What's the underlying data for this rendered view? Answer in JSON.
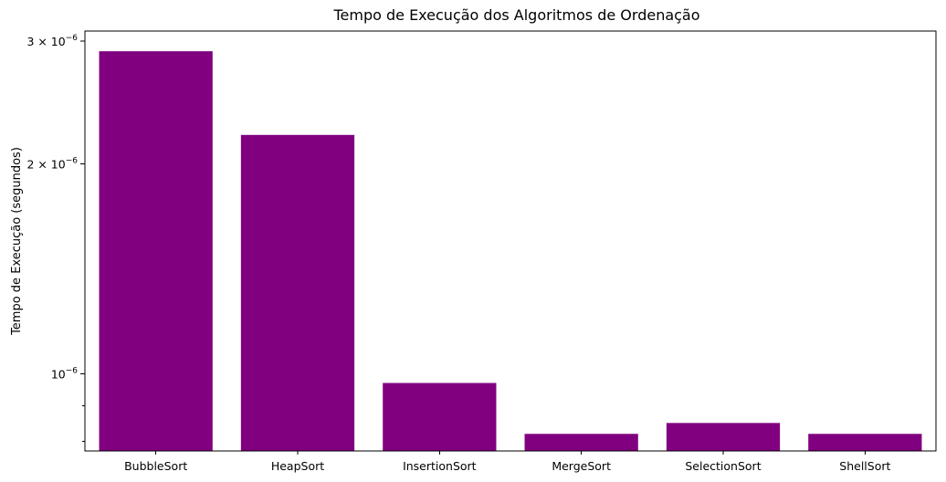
{
  "chart_data": {
    "type": "bar",
    "title": "Tempo de Execução dos Algoritmos de Ordenação",
    "xlabel": "",
    "ylabel": "Tempo de Execução (segundos)",
    "yscale": "log",
    "ylim": [
      7.75e-07,
      3.1e-06
    ],
    "categories": [
      "BubbleSort",
      "HeapSort",
      "InsertionSort",
      "MergeSort",
      "SelectionSort",
      "ShellSort"
    ],
    "values": [
      2.9e-06,
      2.2e-06,
      9.7e-07,
      8.2e-07,
      8.5e-07,
      8.2e-07
    ],
    "yticks": [
      {
        "value": 1e-06,
        "mantissa": "",
        "exponent": "−6"
      },
      {
        "value": 2e-06,
        "mantissa": "2",
        "exponent": "−6"
      },
      {
        "value": 3e-06,
        "mantissa": "3",
        "exponent": "−6"
      }
    ],
    "minor_yticks": [
      8e-07,
      9e-07
    ],
    "bar_color": "#800080",
    "grid": false,
    "legend": "none"
  }
}
